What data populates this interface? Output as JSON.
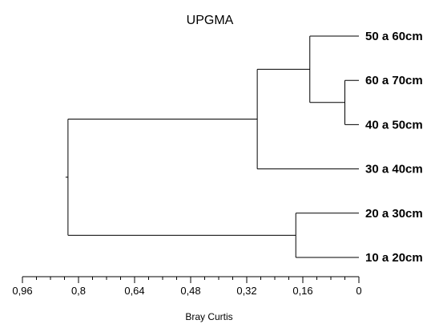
{
  "title": "UPGMA",
  "x_axis": {
    "label": "Bray Curtis",
    "min": 0,
    "max": 0.96,
    "reversed": true,
    "ticks": [
      {
        "value": 0.96,
        "label": "0,96"
      },
      {
        "value": 0.8,
        "label": "0,8"
      },
      {
        "value": 0.64,
        "label": "0,64"
      },
      {
        "value": 0.48,
        "label": "0,48"
      },
      {
        "value": 0.32,
        "label": "0,32"
      },
      {
        "value": 0.16,
        "label": "0,16"
      },
      {
        "value": 0,
        "label": "0"
      }
    ]
  },
  "leaves": [
    "50 a 60cm",
    "60 a 70cm",
    "40 a 50cm",
    "30 a 40cm",
    "20 a 30cm",
    "10 a 20cm"
  ],
  "clusters": [
    {
      "id": "c1",
      "children": [
        "L1",
        "L2"
      ],
      "height": 0.04
    },
    {
      "id": "c2",
      "children": [
        "L0",
        "c1"
      ],
      "height": 0.14
    },
    {
      "id": "c3",
      "children": [
        "c2",
        "L3"
      ],
      "height": 0.29
    },
    {
      "id": "c4",
      "children": [
        "L4",
        "L5"
      ],
      "height": 0.18
    },
    {
      "id": "c5",
      "children": [
        "c3",
        "c4"
      ],
      "height": 0.83
    }
  ],
  "colors": {
    "line": "#000000",
    "text": "#000000",
    "background": "#ffffff"
  }
}
